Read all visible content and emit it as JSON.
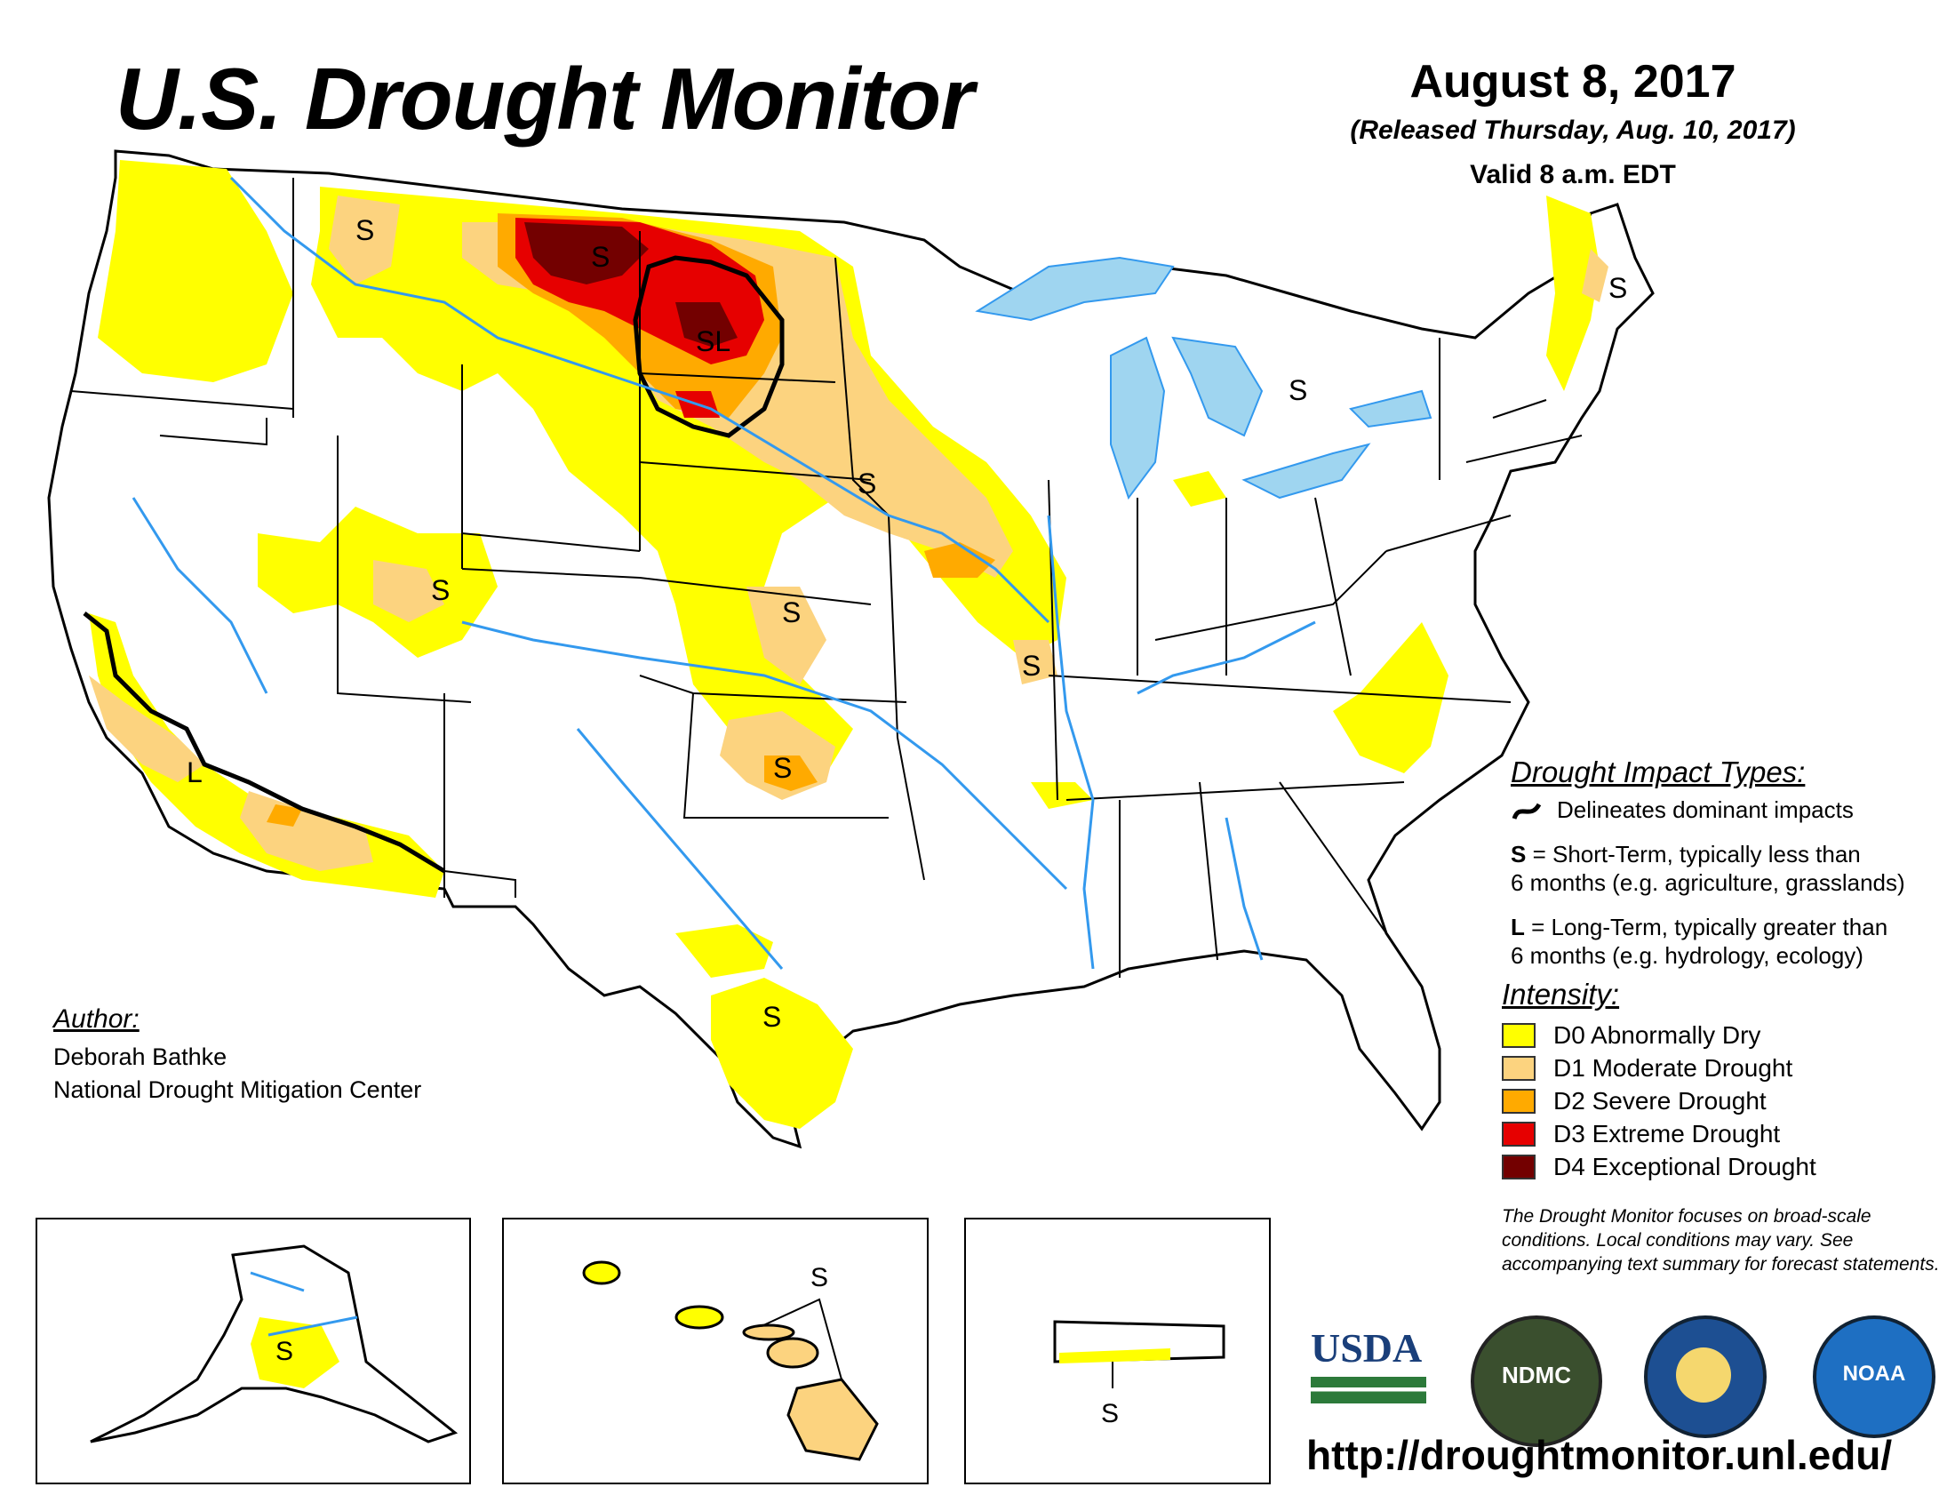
{
  "header": {
    "title": "U.S. Drought Monitor",
    "date": "August 8, 2017",
    "released": "(Released Thursday, Aug. 10, 2017)",
    "valid": "Valid 8 a.m. EDT"
  },
  "map_labels": {
    "impact_letters": [
      "S",
      "S",
      "SL",
      "S",
      "S",
      "S",
      "S",
      "S",
      "S",
      "S",
      "S",
      "L"
    ],
    "alaska": "S",
    "hawaii": "S",
    "puerto_rico": "S"
  },
  "impact_types": {
    "heading": "Drought Impact Types:",
    "delineates": "Delineates dominant impacts",
    "short_key": "S",
    "short_text": "= Short-Term, typically less than",
    "short_text2": "6 months (e.g. agriculture, grasslands)",
    "long_key": "L",
    "long_text": "= Long-Term, typically greater than",
    "long_text2": "6 months (e.g. hydrology, ecology)"
  },
  "intensity": {
    "heading": "Intensity:",
    "levels": [
      {
        "label": "D0 Abnormally Dry",
        "color": "#ffff00"
      },
      {
        "label": "D1 Moderate Drought",
        "color": "#fcd37f"
      },
      {
        "label": "D2 Severe Drought",
        "color": "#ffaa00"
      },
      {
        "label": "D3 Extreme Drought",
        "color": "#e60000"
      },
      {
        "label": "D4 Exceptional Drought",
        "color": "#730000"
      }
    ]
  },
  "author": {
    "heading": "Author:",
    "name": "Deborah Bathke",
    "org": "National Drought Mitigation Center"
  },
  "disclaimer": "The Drought Monitor focuses on broad-scale conditions. Local conditions may vary. See accompanying text summary for forecast statements.",
  "logos": {
    "usda": "USDA",
    "ndmc": "NDMC",
    "noaa": "NOAA"
  },
  "url": "http://droughtmonitor.unl.edu/",
  "colors": {
    "water": "#9fd5f0",
    "river": "#3399ee",
    "border": "#000000"
  }
}
